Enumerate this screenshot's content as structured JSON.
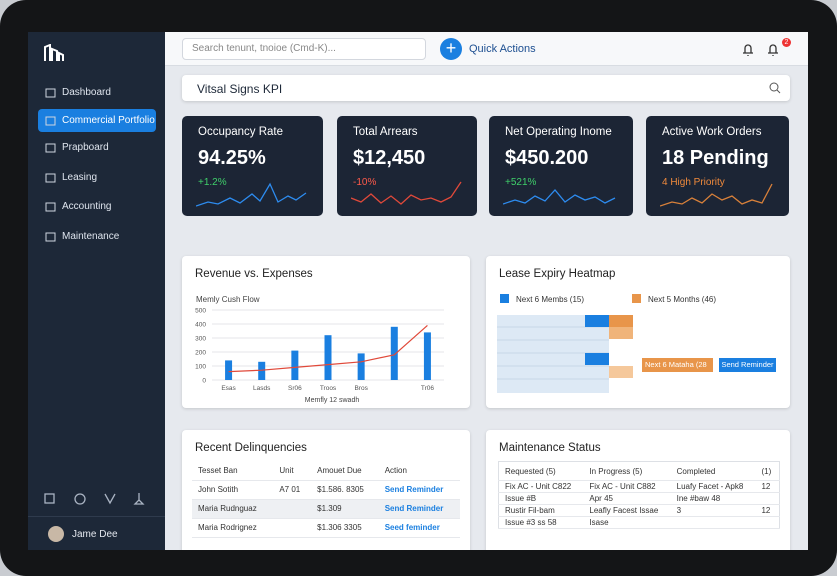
{
  "sidebar": {
    "nav": [
      "Dashboard",
      "Commercial Portfolio",
      "Prapboard",
      "Leasing",
      "Accounting",
      "Maintenance"
    ],
    "user": "Jame Dee"
  },
  "topbar": {
    "search_placeholder": "Search tenunt, tnoioe (Cmd-K)...",
    "quick_actions": "Quick Actions",
    "notifications": "2"
  },
  "kpi_header": "Vitsal Signs KPI",
  "kpis": [
    {
      "title": "Occupancy Rate",
      "value": "94.25%",
      "change": "+1.2%"
    },
    {
      "title": "Total Arrears",
      "value": "$12,450",
      "change": "-10%"
    },
    {
      "title": "Net Operating Inome",
      "value": "$450.200",
      "change": "+521%"
    },
    {
      "title": "Active Work Orders",
      "value": "18 Pending",
      "change": "4 High Priority"
    }
  ],
  "revenue": {
    "title": "Revenue vs. Expenses",
    "chart_data": {
      "type": "bar",
      "subtitle": "Memly Cush Flow",
      "x_label": "Memfly 12 swadh",
      "categories": [
        "Esas",
        "Lasds",
        "Sr06",
        "Troos",
        "Bros",
        null,
        "Tr06"
      ],
      "series": [
        {
          "type": "bar",
          "color": "#1a7fe0",
          "values": [
            140,
            130,
            210,
            320,
            190,
            380,
            340
          ]
        },
        {
          "type": "line",
          "color": "#e0493a",
          "values": [
            60,
            70,
            90,
            110,
            130,
            180,
            390
          ]
        }
      ],
      "ylim": [
        0,
        500
      ],
      "yticks": [
        0,
        100,
        200,
        300,
        400,
        500
      ],
      "grid": true
    }
  },
  "heatmap": {
    "title": "Lease Expiry Heatmap",
    "legend": [
      "Next 6 Membs (15)",
      "Next 5 Months (46)"
    ],
    "tag": "Next 6 Mataha (28",
    "button": "Send Reminder"
  },
  "delinquencies": {
    "title": "Recent Delinquencies",
    "columns": [
      "Tesset Ban",
      "Unit",
      "Amouet Due",
      "Action"
    ],
    "rows": [
      [
        "John Sotith",
        "A7 01",
        "$1.586. 8305",
        "Send Reminder"
      ],
      [
        "Maria Rudnguaz",
        "",
        "$1.309",
        "Send Reminder"
      ],
      [
        "Maria Rodrignez",
        "",
        "$1.306 3305",
        "Seed feminder"
      ]
    ]
  },
  "maintenance": {
    "title": "Maintenance Status",
    "columns": [
      "Requested (5)",
      "In Progress (5)",
      "Completed",
      "(1)"
    ],
    "rows": [
      [
        "Fix AC - Unit C822",
        "Fix AC - Unit C882",
        "Luafy Facet - Apk8",
        "12"
      ],
      [
        "Issue #B",
        "Apr 45",
        "Ine #baw 48",
        ""
      ],
      [
        "Rustir Fil-bam",
        "Leafly Facest Issae",
        "3",
        "12"
      ],
      [
        "Issue #3 ss 58",
        "Isase",
        "",
        ""
      ]
    ]
  }
}
